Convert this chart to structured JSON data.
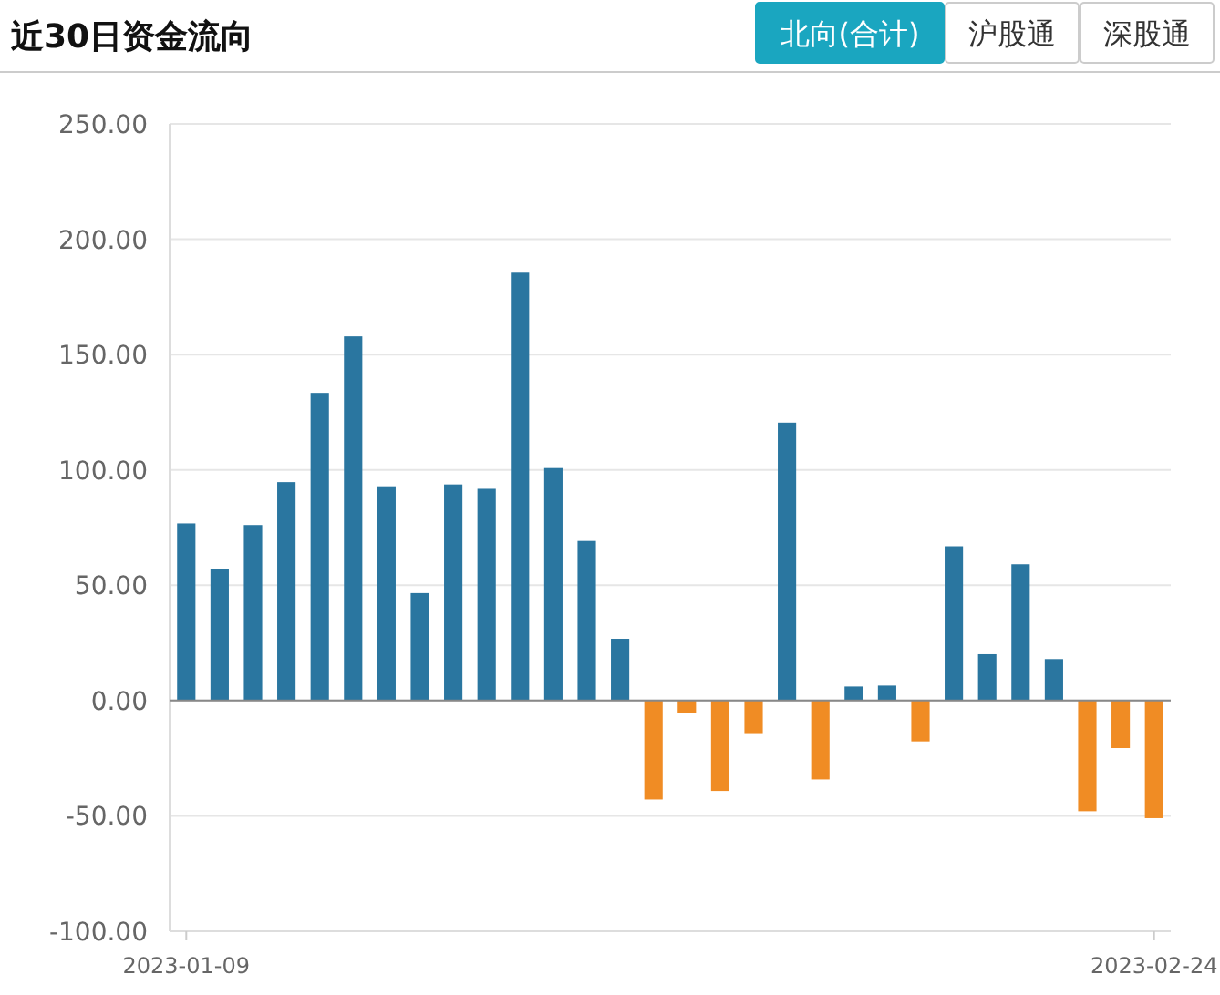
{
  "chart_data": {
    "type": "bar",
    "title": "近30日资金流向",
    "annotations": [
      "北向(合计)",
      "沪股通",
      "深股通"
    ],
    "categories": [
      "2023-01-09",
      null,
      null,
      null,
      null,
      null,
      null,
      null,
      null,
      null,
      null,
      null,
      null,
      null,
      null,
      null,
      null,
      null,
      null,
      null,
      null,
      null,
      null,
      null,
      null,
      null,
      null,
      null,
      null,
      "2023-02-24"
    ],
    "values": [
      76.8,
      57.1,
      76.1,
      94.7,
      133.4,
      157.9,
      92.9,
      46.6,
      93.7,
      91.8,
      185.5,
      100.8,
      69.2,
      26.8,
      -42.9,
      -5.5,
      -39.2,
      -14.5,
      120.5,
      -34.2,
      6.1,
      6.5,
      -17.7,
      66.9,
      20.1,
      59.1,
      18.0,
      -48,
      -20.6,
      -51
    ],
    "colors": [
      "#2a76a0",
      "#2a76a0",
      "#2a76a0",
      "#2a76a0",
      "#2a76a0",
      "#2a76a0",
      "#2a76a0",
      "#2a76a0",
      "#2a76a0",
      "#2a76a0",
      "#2a76a0",
      "#2a76a0",
      "#2a76a0",
      "#2a76a0",
      "#f08c24",
      "#f08c24",
      "#f08c24",
      "#f08c24",
      "#2a76a0",
      "#f08c24",
      "#2a76a0",
      "#2a76a0",
      "#f08c24",
      "#2a76a0",
      "#2a76a0",
      "#2a76a0",
      "#2a76a0",
      "#f08c24",
      "#f08c24",
      "#f08c24"
    ],
    "ylim": [
      -100,
      250
    ],
    "yticks": [
      {
        "value": -100,
        "label": "-100.00"
      },
      {
        "value": -50,
        "label": "-50.00"
      },
      {
        "value": 0,
        "label": "0.00"
      },
      {
        "value": 50,
        "label": "50.00"
      },
      {
        "value": 100,
        "label": "100.00"
      },
      {
        "value": 150,
        "label": "150.00"
      },
      {
        "value": 200,
        "label": "200.00"
      },
      {
        "value": 250,
        "label": "250.00"
      }
    ],
    "grid": "y"
  }
}
